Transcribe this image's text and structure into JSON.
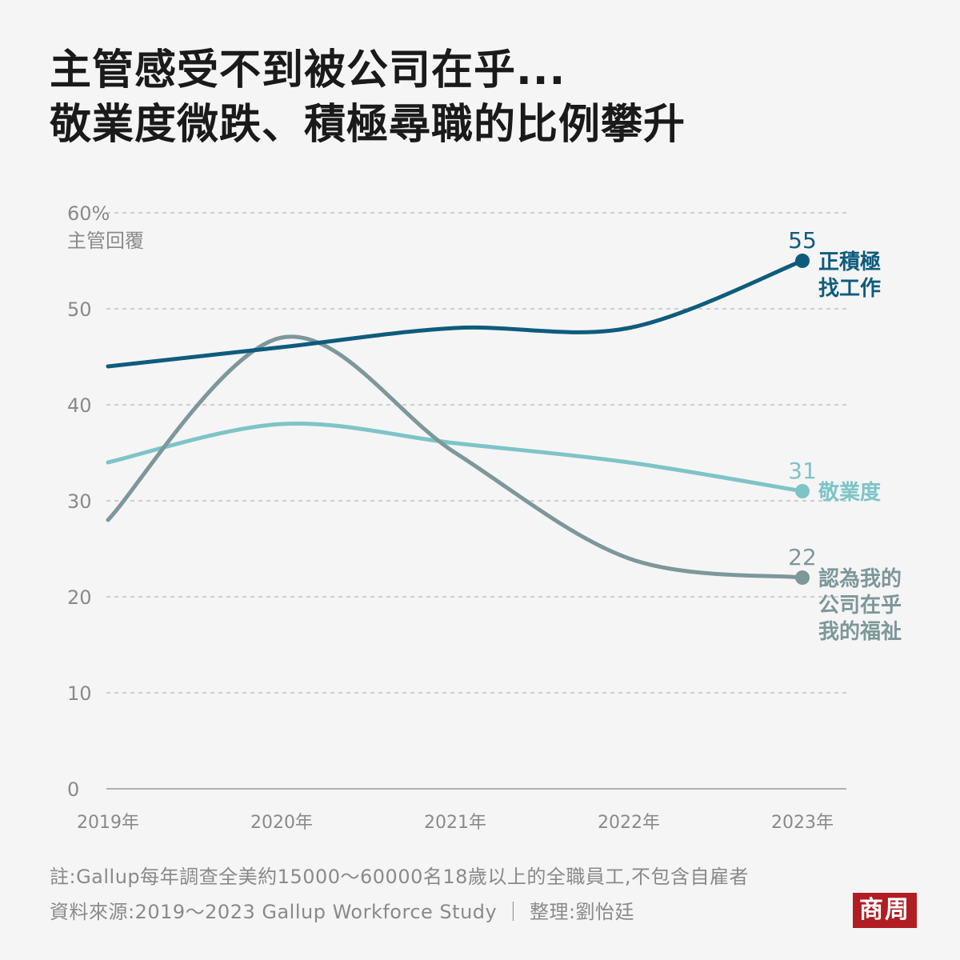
{
  "title_lines": [
    "主管感受不到被公司在乎...",
    "敬業度微跌、積極尋職的比例攀升"
  ],
  "chart_data": {
    "type": "line",
    "x": [
      "2019年",
      "2020年",
      "2021年",
      "2022年",
      "2023年"
    ],
    "y_ticks": [
      "0",
      "10",
      "20",
      "30",
      "40",
      "50",
      "60%"
    ],
    "ylabel": "主管回覆",
    "ylim": [
      0,
      60
    ],
    "grid": true,
    "series": [
      {
        "name": "正積極找工作",
        "label_lines": [
          "正積極",
          "找工作"
        ],
        "end_label": "55",
        "color": "#0e5c7c",
        "points": [
          [
            2019,
            44
          ],
          [
            2020,
            46
          ],
          [
            2021,
            48
          ],
          [
            2022,
            48
          ],
          [
            2023,
            55
          ]
        ]
      },
      {
        "name": "敬業度",
        "label_lines": [
          "敬業度"
        ],
        "end_label": "31",
        "color": "#7ec4c7",
        "points": [
          [
            2019,
            34
          ],
          [
            2020,
            38
          ],
          [
            2021,
            36
          ],
          [
            2022,
            34
          ],
          [
            2023,
            31
          ]
        ]
      },
      {
        "name": "認為我的公司在乎我的福祉",
        "label_lines": [
          "認為我的",
          "公司在乎",
          "我的福祉"
        ],
        "end_label": "22",
        "color": "#7d979a",
        "points": [
          [
            2019,
            28
          ],
          [
            2020,
            47
          ],
          [
            2021,
            35
          ],
          [
            2022,
            24
          ],
          [
            2023,
            22
          ]
        ]
      }
    ]
  },
  "footer": {
    "note": "註:Gallup每年調查全美約15000～60000名18歲以上的全職員工,不包含自雇者",
    "source": "資料來源:2019～2023 Gallup Workforce Study ｜ 整理:劉怡廷"
  },
  "logo": "商周",
  "colors": {
    "axis_text": "#8a8a8a",
    "grid": "#b8b8b8",
    "title": "#1a1a1a",
    "logo_bg": "#b01e23"
  }
}
